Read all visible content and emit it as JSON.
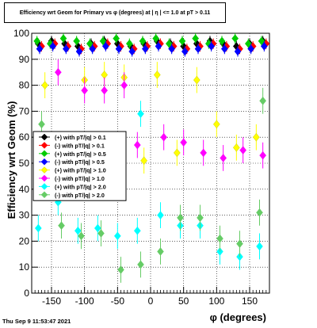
{
  "chart_data": {
    "type": "scatter",
    "title": "Efficiency wrt Geom for Primary vs φ (degrees) at | η | <= 1.0 at pT > 0.11",
    "xlabel": "φ (degrees)",
    "ylabel": "Efficiency wrt Geom (%)",
    "xlim": [
      -180,
      180
    ],
    "ylim": [
      0,
      100
    ],
    "xticks": [
      -150,
      -100,
      -50,
      0,
      50,
      100,
      150
    ],
    "yticks": [
      0,
      10,
      20,
      30,
      40,
      50,
      60,
      70,
      80,
      90,
      100
    ],
    "grid": true,
    "legend_position": "mid-left",
    "series": [
      {
        "name": "(+) with pT/|q| > 0.1",
        "color": "#000000",
        "x": [
          -170,
          -150,
          -130,
          -110,
          -90,
          -70,
          -50,
          -30,
          -10,
          10,
          30,
          50,
          70,
          90,
          110,
          130,
          150,
          170
        ],
        "y": [
          96,
          97,
          96,
          95,
          96,
          97,
          96,
          95,
          96,
          97,
          96,
          95,
          96,
          97,
          96,
          95,
          96,
          97
        ]
      },
      {
        "name": "(-) with pT/|q| > 0.1",
        "color": "#ff0000",
        "x": [
          -165,
          -145,
          -125,
          -105,
          -85,
          -65,
          -45,
          -25,
          -5,
          15,
          35,
          55,
          75,
          95,
          115,
          135,
          155,
          175
        ],
        "y": [
          95,
          96,
          95,
          94,
          95,
          96,
          95,
          94,
          95,
          96,
          95,
          94,
          95,
          96,
          95,
          94,
          95,
          96
        ]
      },
      {
        "name": "(+) with pT/|q| > 0.5",
        "color": "#00cc00",
        "x": [
          -172,
          -152,
          -132,
          -112,
          -92,
          -72,
          -52,
          -32,
          -12,
          8,
          28,
          48,
          68,
          88,
          108,
          128,
          148,
          168
        ],
        "y": [
          97,
          96,
          98,
          97,
          96,
          97,
          98,
          96,
          97,
          98,
          96,
          97,
          98,
          96,
          97,
          98,
          96,
          97
        ]
      },
      {
        "name": "(-) with pT/|q| > 0.5",
        "color": "#0000ff",
        "x": [
          -168,
          -148,
          -128,
          -108,
          -88,
          -68,
          -48,
          -28,
          -8,
          12,
          32,
          52,
          72,
          92,
          112,
          132,
          152,
          172
        ],
        "y": [
          94,
          95,
          94,
          93,
          94,
          95,
          94,
          93,
          94,
          95,
          94,
          93,
          94,
          95,
          94,
          93,
          94,
          95
        ]
      },
      {
        "name": "(+) with pT/|q| > 1.0",
        "color": "#ffff00",
        "x": [
          -160,
          -100,
          -70,
          -40,
          -10,
          10,
          40,
          70,
          100,
          130,
          160
        ],
        "y": [
          80,
          82,
          84,
          83,
          51,
          84,
          54,
          82,
          65,
          56,
          60
        ]
      },
      {
        "name": "(-) with pT/|q| > 1.0",
        "color": "#ff00ff",
        "x": [
          -140,
          -100,
          -70,
          -40,
          -20,
          20,
          50,
          80,
          110,
          140,
          170
        ],
        "y": [
          85,
          78,
          78,
          80,
          57,
          60,
          58,
          54,
          52,
          55,
          53
        ]
      },
      {
        "name": "(+) with pT/|q| > 2.0",
        "color": "#00ffff",
        "x": [
          -170,
          -140,
          -110,
          -80,
          -50,
          -20,
          -15,
          15,
          45,
          75,
          105,
          135,
          165
        ],
        "y": [
          25,
          35,
          24,
          25,
          22,
          24,
          69,
          30,
          26,
          26,
          16,
          14,
          18
        ]
      },
      {
        "name": "(-) with pT/|q| > 2.0",
        "color": "#66cc66",
        "x": [
          -165,
          -135,
          -105,
          -75,
          -45,
          -15,
          15,
          45,
          75,
          105,
          135,
          165,
          170
        ],
        "y": [
          65,
          26,
          22,
          23,
          9,
          11,
          16,
          29,
          29,
          21,
          19,
          31,
          74
        ]
      }
    ]
  },
  "footer": {
    "timestamp": "Thu Sep  9 11:53:47 2021"
  }
}
